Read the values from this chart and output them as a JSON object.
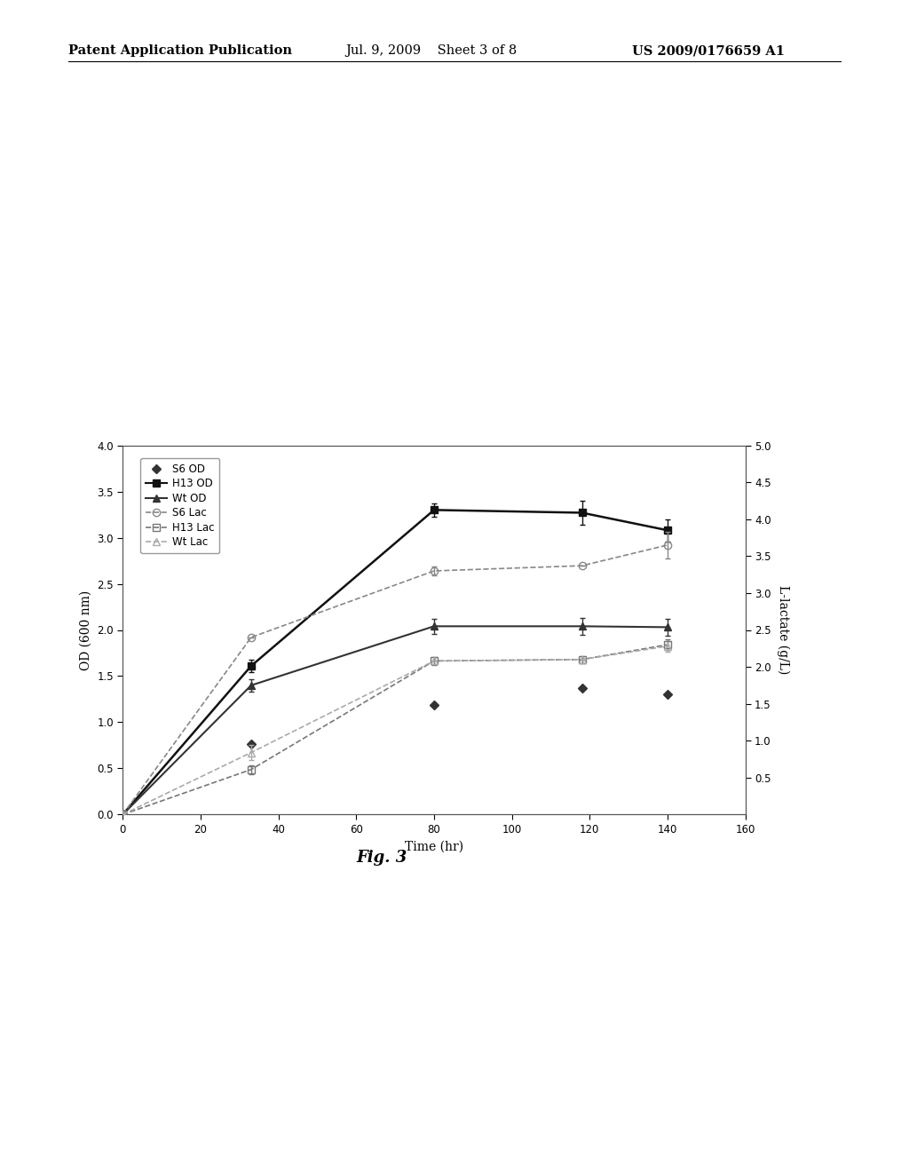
{
  "header_left": "Patent Application Publication",
  "header_mid": "Jul. 9, 2009    Sheet 3 of 8",
  "header_right": "US 2009/0176659 A1",
  "fig_label": "Fig. 3",
  "xlabel": "Time (hr)",
  "ylabel_left": "OD (600 nm)",
  "ylabel_right": "L-lactate (g/L)",
  "xlim": [
    0,
    160
  ],
  "ylim_left": [
    0,
    4
  ],
  "ylim_right": [
    0,
    5
  ],
  "xticks": [
    0,
    20,
    40,
    60,
    80,
    100,
    120,
    140,
    160
  ],
  "yticks_left": [
    0,
    0.5,
    1.0,
    1.5,
    2.0,
    2.5,
    3.0,
    3.5,
    4.0
  ],
  "yticks_right": [
    0.5,
    1.0,
    1.5,
    2.0,
    2.5,
    3.0,
    3.5,
    4.0,
    4.5,
    5.0
  ],
  "S6_OD": {
    "x": [
      0,
      33,
      80,
      118,
      140
    ],
    "y": [
      0,
      0.76,
      1.19,
      1.37,
      1.3
    ],
    "yerr": [
      0,
      0,
      0,
      0,
      0
    ],
    "color": "#333333",
    "marker": "D",
    "markersize": 5,
    "label": "S6 OD"
  },
  "H13_OD": {
    "x": [
      0,
      33,
      80,
      118,
      140
    ],
    "y": [
      0,
      1.61,
      3.3,
      3.27,
      3.08
    ],
    "yerr": [
      0,
      0.07,
      0.07,
      0.13,
      0.12
    ],
    "color": "#111111",
    "marker": "s",
    "markersize": 6,
    "label": "H13 OD"
  },
  "Wt_OD": {
    "x": [
      0,
      33,
      80,
      118,
      140
    ],
    "y": [
      0,
      1.4,
      2.04,
      2.04,
      2.03
    ],
    "yerr": [
      0,
      0.07,
      0.08,
      0.09,
      0.09
    ],
    "color": "#333333",
    "marker": "^",
    "markersize": 6,
    "label": "Wt OD"
  },
  "S6_Lac": {
    "x": [
      0,
      33,
      80,
      118,
      140
    ],
    "y": [
      0,
      2.4,
      3.3,
      3.37,
      3.65
    ],
    "yerr": [
      0,
      0,
      0.06,
      0,
      0.18
    ],
    "color": "#888888",
    "marker": "o",
    "markersize": 6,
    "label": "S6 Lac"
  },
  "H13_Lac": {
    "x": [
      0,
      33,
      80,
      118,
      140
    ],
    "y": [
      0,
      0.61,
      2.08,
      2.1,
      2.3
    ],
    "yerr": [
      0,
      0.06,
      0.05,
      0.05,
      0.07
    ],
    "color": "#777777",
    "marker": "s",
    "markersize": 6,
    "label": "H13 Lac"
  },
  "Wt_Lac": {
    "x": [
      0,
      33,
      80,
      118,
      140
    ],
    "y": [
      0,
      0.84,
      2.08,
      2.1,
      2.28
    ],
    "yerr": [
      0,
      0.1,
      0,
      0,
      0.07
    ],
    "color": "#aaaaaa",
    "marker": "^",
    "markersize": 6,
    "label": "Wt Lac"
  },
  "background_color": "#ffffff",
  "plot_bg_color": "#ffffff"
}
